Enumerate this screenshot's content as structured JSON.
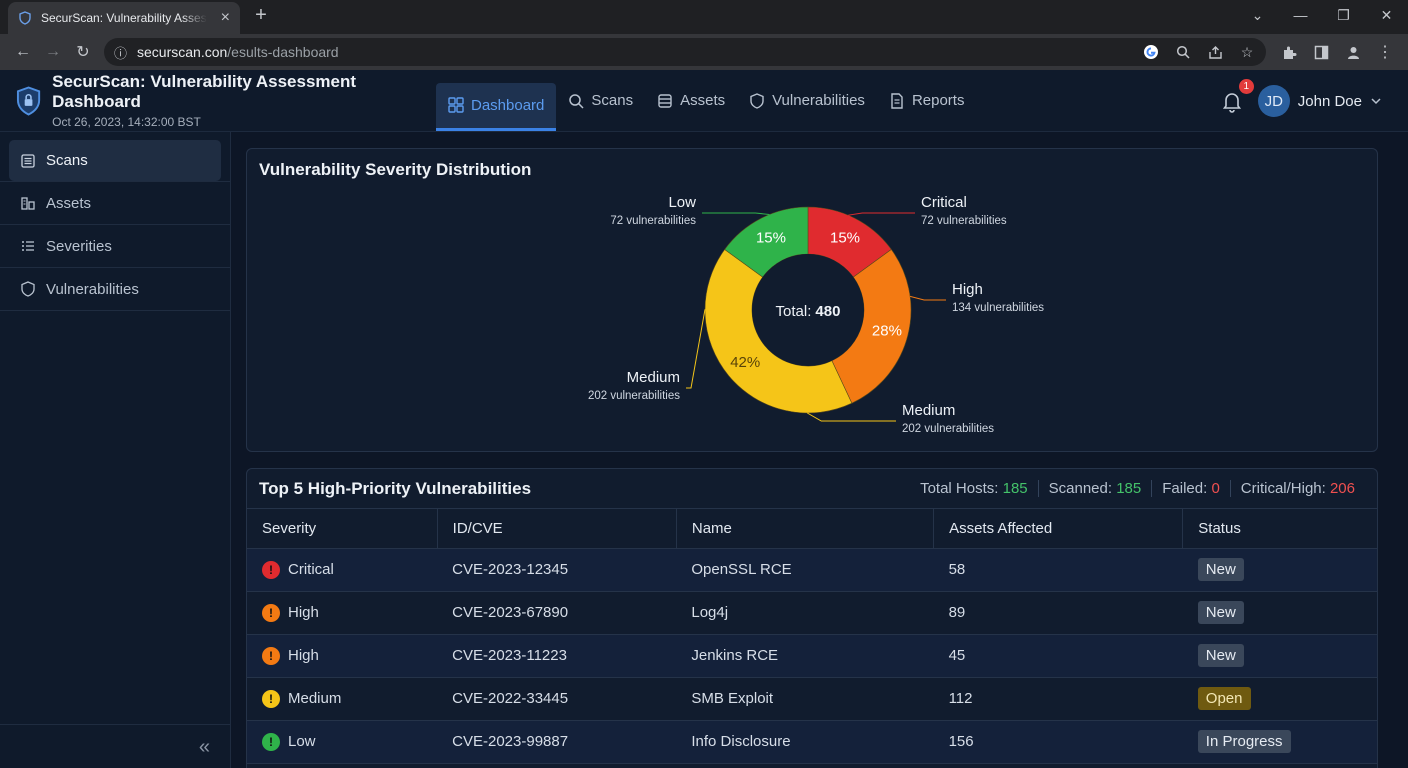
{
  "browser": {
    "tab_title": "SecurScan: Vulnerability Assessment Dashboard",
    "url_host": "securscan.con",
    "url_path": "/esults-dashboard"
  },
  "header": {
    "title": "SecurScan: Vulnerability Assessment Dashboard",
    "timestamp": "Oct 26, 2023, 14:32:00 BST",
    "nav": [
      {
        "label": "Dashboard",
        "icon": "grid-icon"
      },
      {
        "label": "Scans",
        "icon": "search-icon"
      },
      {
        "label": "Assets",
        "icon": "database-icon"
      },
      {
        "label": "Vulnerabilities",
        "icon": "shield-icon"
      },
      {
        "label": "Reports",
        "icon": "document-icon"
      }
    ],
    "notifications": "1",
    "user_initials": "JD",
    "user_name": "John Doe"
  },
  "sidebar": {
    "items": [
      {
        "label": "Scans",
        "icon": "list-icon"
      },
      {
        "label": "Assets",
        "icon": "assets-icon"
      },
      {
        "label": "Severities",
        "icon": "list-bullets-icon"
      },
      {
        "label": "Vulnerabilities",
        "icon": "shield-icon"
      }
    ]
  },
  "chart_card": {
    "title": "Vulnerability Severity Distribution",
    "center_label": "Total:",
    "center_value": "480"
  },
  "chart_data": {
    "type": "pie",
    "title": "Vulnerability Severity Distribution",
    "total": 480,
    "slices": [
      {
        "name": "Critical",
        "percent_label": "15%",
        "callout": "72 vulnerabilities",
        "value": 15,
        "color": "#e02b2f"
      },
      {
        "name": "High",
        "percent_label": "28%",
        "callout": "134 vulnerabilities",
        "value": 28,
        "color": "#f37a13"
      },
      {
        "name": "Medium",
        "percent_label": "42%",
        "callout": "202 vulnerabilities",
        "value": 42,
        "color": "#f5c518"
      },
      {
        "name": "Low",
        "percent_label": "15%",
        "callout": "72 vulnerabilities",
        "value": 15,
        "color": "#2fb34a"
      }
    ],
    "extra_callout": {
      "name": "Medium",
      "callout": "202 vulnerabilities"
    }
  },
  "table_card": {
    "title": "Top 5 High-Priority Vulnerabilities",
    "stats": [
      {
        "label": "Total Hosts:",
        "value": "185",
        "color": "green"
      },
      {
        "label": "Scanned:",
        "value": "185",
        "color": "green"
      },
      {
        "label": "Failed:",
        "value": "0",
        "color": "red"
      },
      {
        "label": "Critical/High:",
        "value": "206",
        "color": "red"
      }
    ],
    "columns": [
      "Severity",
      "ID/CVE",
      "Name",
      "Assets Affected",
      "Status"
    ],
    "rows": [
      {
        "severity": "Critical",
        "sev_color": "#e02b2f",
        "id": "CVE-2023-12345",
        "name": "OpenSSL RCE",
        "assets": "58",
        "status": "New"
      },
      {
        "severity": "High",
        "sev_color": "#f37a13",
        "id": "CVE-2023-67890",
        "name": "Log4j",
        "assets": "89",
        "status": "New"
      },
      {
        "severity": "High",
        "sev_color": "#f37a13",
        "id": "CVE-2023-11223",
        "name": "Jenkins RCE",
        "assets": "45",
        "status": "New"
      },
      {
        "severity": "Medium",
        "sev_color": "#f5c518",
        "id": "CVE-2022-33445",
        "name": "SMB Exploit",
        "assets": "112",
        "status": "Open"
      },
      {
        "severity": "Low",
        "sev_color": "#2fb34a",
        "id": "CVE-2023-99887",
        "name": "Info Disclosure",
        "assets": "156",
        "status": "In Progress"
      }
    ]
  }
}
